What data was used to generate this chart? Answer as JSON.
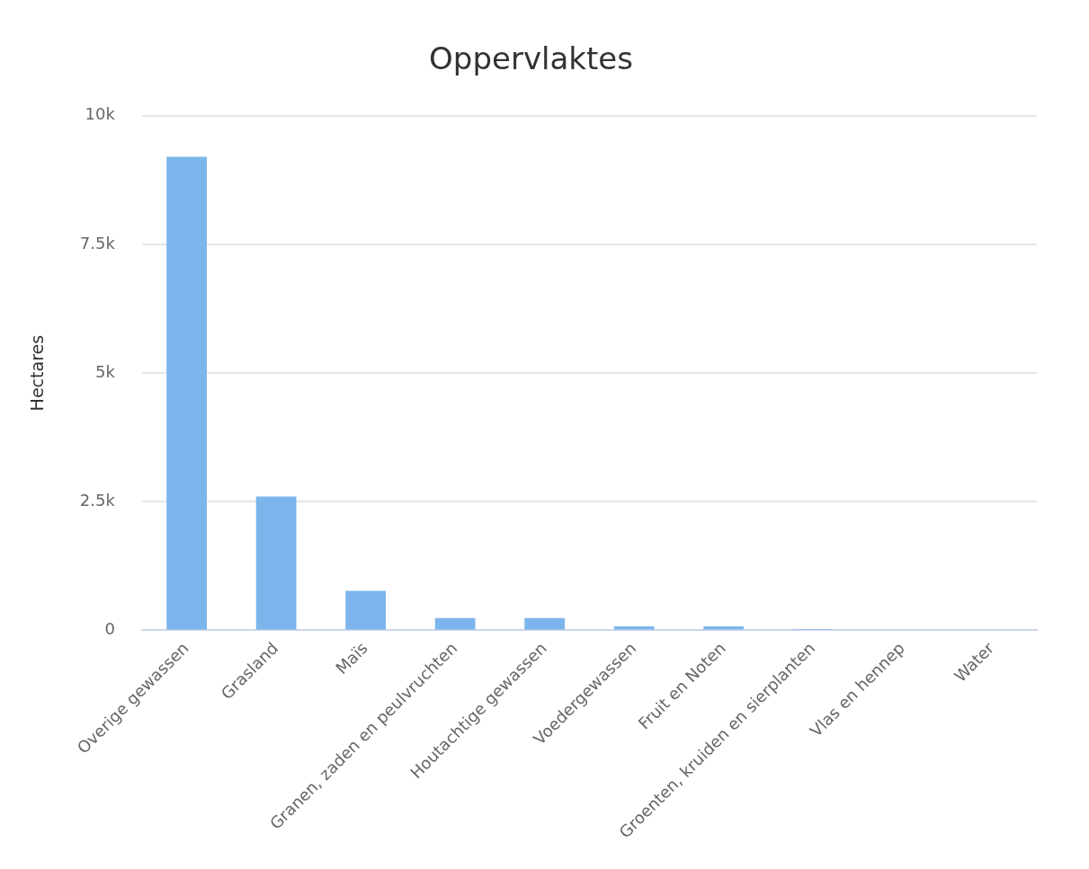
{
  "chart_data": {
    "type": "bar",
    "title": "Oppervlaktes",
    "ylabel": "Hectares",
    "categories": [
      "Overige gewassen",
      "Grasland",
      "Maïs",
      "Granen, zaden en peulvruchten",
      "Houtachtige gewassen",
      "Voedergewassen",
      "Fruit en Noten",
      "Groenten, kruiden en sierplanten",
      "Vlas en hennep",
      "Water"
    ],
    "values": [
      9200,
      2600,
      770,
      240,
      240,
      80,
      80,
      10,
      0,
      0
    ],
    "color": "#7cb5ec",
    "ylim": [
      0,
      10000
    ],
    "yticks": [
      {
        "value": 0,
        "label": "0"
      },
      {
        "value": 2500,
        "label": "2.5k"
      },
      {
        "value": 5000,
        "label": "5k"
      },
      {
        "value": 7500,
        "label": "7.5k"
      },
      {
        "value": 10000,
        "label": "10k"
      }
    ],
    "grid": "y",
    "legend": false
  }
}
